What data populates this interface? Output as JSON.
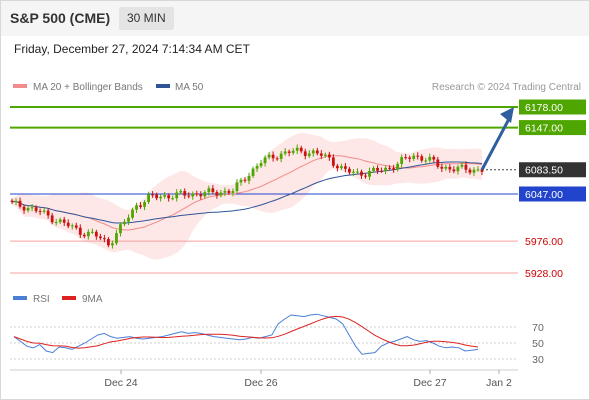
{
  "header": {
    "symbol": "S&P 500 (CME)",
    "timeframe": "30 MIN",
    "datetime": "Friday, December 27, 2024 7:14:34 AM CET"
  },
  "legend": {
    "ma20": "MA 20 + Bollinger Bands",
    "ma50": "MA 50",
    "credit": "Research © 2024 Trading Central",
    "rsi": "RSI",
    "ma9": "9MA"
  },
  "colors": {
    "ma20": "#f28b8b",
    "ma50": "#2f5597",
    "bollinger_fill": "#fde3e3",
    "target": "#4fa600",
    "pivot": "#2244cc",
    "support": "#cc0000",
    "support_line": "#f5a0a0",
    "current": "#333333",
    "arrow": "#2f5f9e",
    "rsi": "#4a7fd6",
    "rsi_ma": "#dd2222",
    "candle_up": "#4fa600",
    "candle_down": "#cc1111"
  },
  "chart_data": {
    "type": "candlestick",
    "ylim": [
      5905,
      6200
    ],
    "x_ticks": [
      "Dec 24",
      "Dec 26",
      "Dec 27",
      "Jan 2"
    ],
    "current_price": 6083.5,
    "levels": [
      {
        "label": "6178.00",
        "value": 6178.0,
        "kind": "target"
      },
      {
        "label": "6147.00",
        "value": 6147.0,
        "kind": "target"
      },
      {
        "label": "6083.50",
        "value": 6083.5,
        "kind": "current"
      },
      {
        "label": "6047.00",
        "value": 6047.0,
        "kind": "pivot"
      },
      {
        "label": "5976.00",
        "value": 5976.0,
        "kind": "support"
      },
      {
        "label": "5928.00",
        "value": 5928.0,
        "kind": "support"
      }
    ],
    "close_anchors": [
      6032,
      6028,
      6020,
      6010,
      6000,
      5990,
      5985,
      5972,
      6000,
      6030,
      6042,
      6044,
      6045,
      6047,
      6048,
      6050,
      6052,
      6075,
      6095,
      6105,
      6110,
      6112,
      6108,
      6100,
      6082,
      6078,
      6080,
      6084,
      6094,
      6105,
      6100,
      6088,
      6085,
      6084,
      6083.5
    ],
    "forecast": {
      "from": 6083.5,
      "to": 6178.0
    },
    "rsi": {
      "levels": [
        70,
        50,
        30
      ],
      "values": [
        58,
        52,
        46,
        44,
        48,
        40,
        38,
        45,
        44,
        42,
        46,
        50,
        55,
        60,
        62,
        58,
        56,
        57,
        58,
        56,
        55,
        56,
        57,
        58,
        60,
        62,
        64,
        62,
        63,
        62,
        60,
        58,
        57,
        56,
        55,
        54,
        55,
        57,
        56,
        58,
        60,
        74,
        80,
        85,
        84,
        83,
        85,
        86,
        84,
        82,
        80,
        74,
        60,
        46,
        36,
        37,
        38,
        46,
        50,
        52,
        55,
        58,
        54,
        52,
        53,
        50,
        46,
        44,
        45,
        44,
        40,
        41,
        42
      ]
    }
  }
}
